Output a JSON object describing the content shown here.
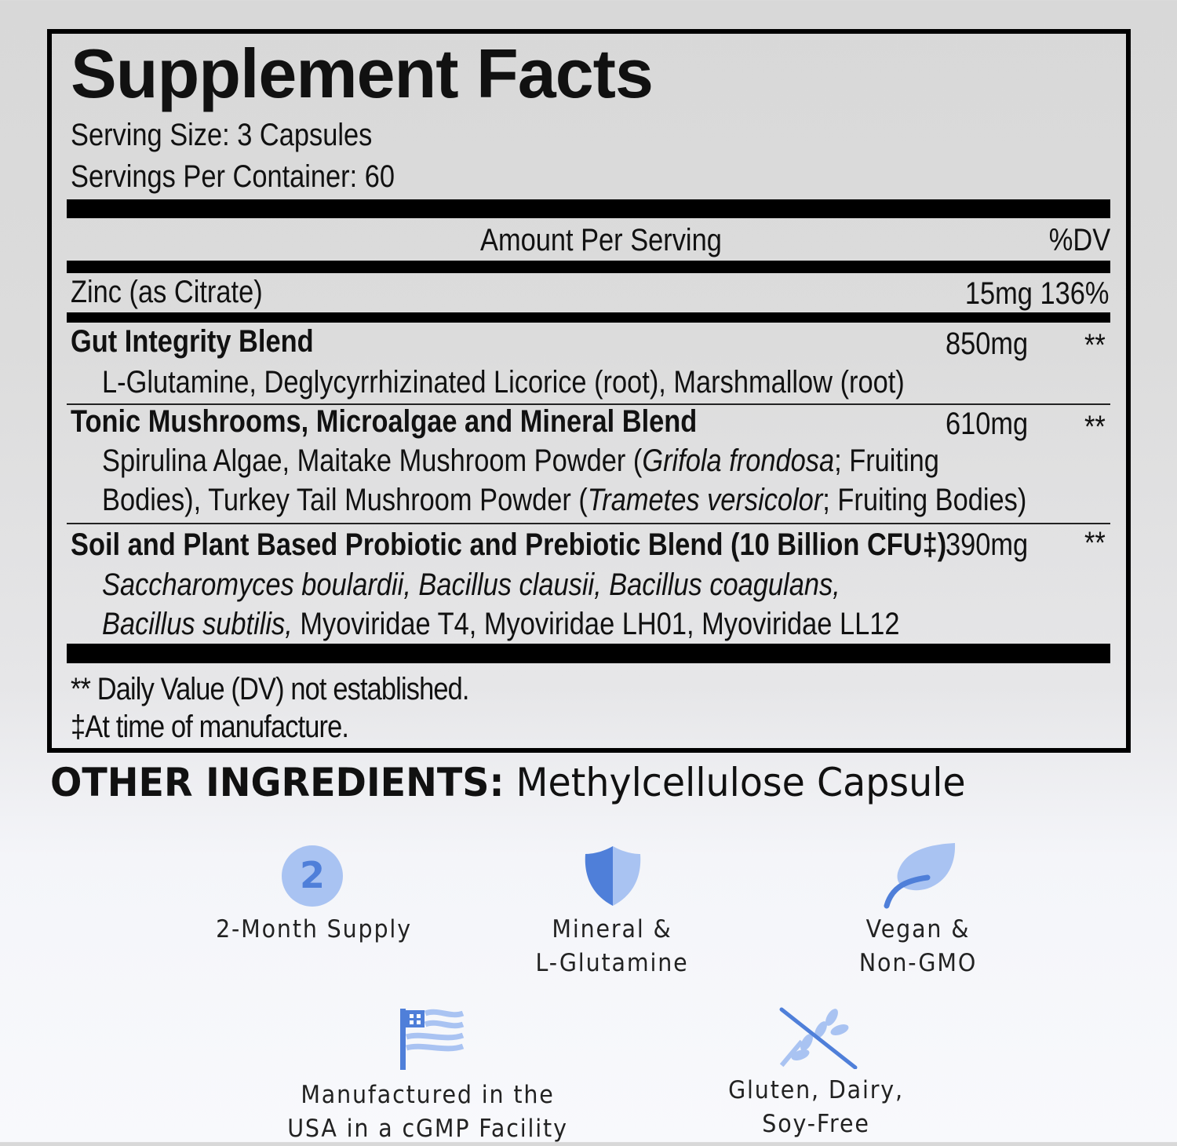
{
  "label": {
    "title": "Supplement Facts",
    "serving_size": "Serving Size: 3 Capsules",
    "servings_per_container": "Servings Per Container: 60",
    "header_amount": "Amount Per Serving",
    "header_dv": "%DV",
    "rows": [
      {
        "name": "Zinc (as Citrate)",
        "amount": "15mg 136%"
      },
      {
        "name": "Gut Integrity Blend",
        "amount": "850mg",
        "dv": "**",
        "ingredients": [
          "L-Glutamine, Deglycyrrhizinated Licorice (root), Marshmallow (root)"
        ]
      },
      {
        "name": "Tonic Mushrooms, Microalgae and Mineral Blend",
        "amount": "610mg",
        "dv": "**",
        "ingredients_parts": {
          "l1a": "Spirulina Algae, Maitake Mushroom Powder (",
          "l1b": "Grifola frondosa",
          "l1c": "; Fruiting",
          "l2a": "Bodies), Turkey Tail Mushroom Powder (",
          "l2b": "Trametes versicolor",
          "l2c": "; Fruiting Bodies)"
        }
      },
      {
        "name": "Soil and Plant Based Probiotic and Prebiotic Blend (10 Billion CFU‡)",
        "amount": "390mg",
        "dv": "**",
        "ingredients_parts": {
          "l1": "Saccharomyces boulardii, Bacillus clausii, Bacillus coagulans,",
          "l2a": "Bacillus subtilis,",
          "l2b": " Myoviridae T4, Myoviridae LH01, Myoviridae LL12"
        }
      }
    ],
    "footnote_dv": "** Daily Value (DV) not established.",
    "footnote_manufacture": "‡At time of manufacture."
  },
  "other_ingredients": {
    "label": "OTHER INGREDIENTS:",
    "value": " Methylcellulose Capsule"
  },
  "features": [
    {
      "icon": "number-2-circle-icon",
      "icon_text": "2",
      "line1": "2-Month Supply",
      "line2": ""
    },
    {
      "icon": "shield-icon",
      "line1": "Mineral &",
      "line2": "L-Glutamine"
    },
    {
      "icon": "leaf-icon",
      "line1": "Vegan &",
      "line2": "Non-GMO"
    },
    {
      "icon": "us-flag-icon",
      "line1": "Manufactured in the",
      "line2": "USA in a cGMP Facility"
    },
    {
      "icon": "no-wheat-icon",
      "line1": "Gluten, Dairy,",
      "line2": "Soy-Free"
    }
  ],
  "colors": {
    "icon_dark": "#4f7fd9",
    "icon_light": "#a9c3f2",
    "text": "#111111"
  }
}
